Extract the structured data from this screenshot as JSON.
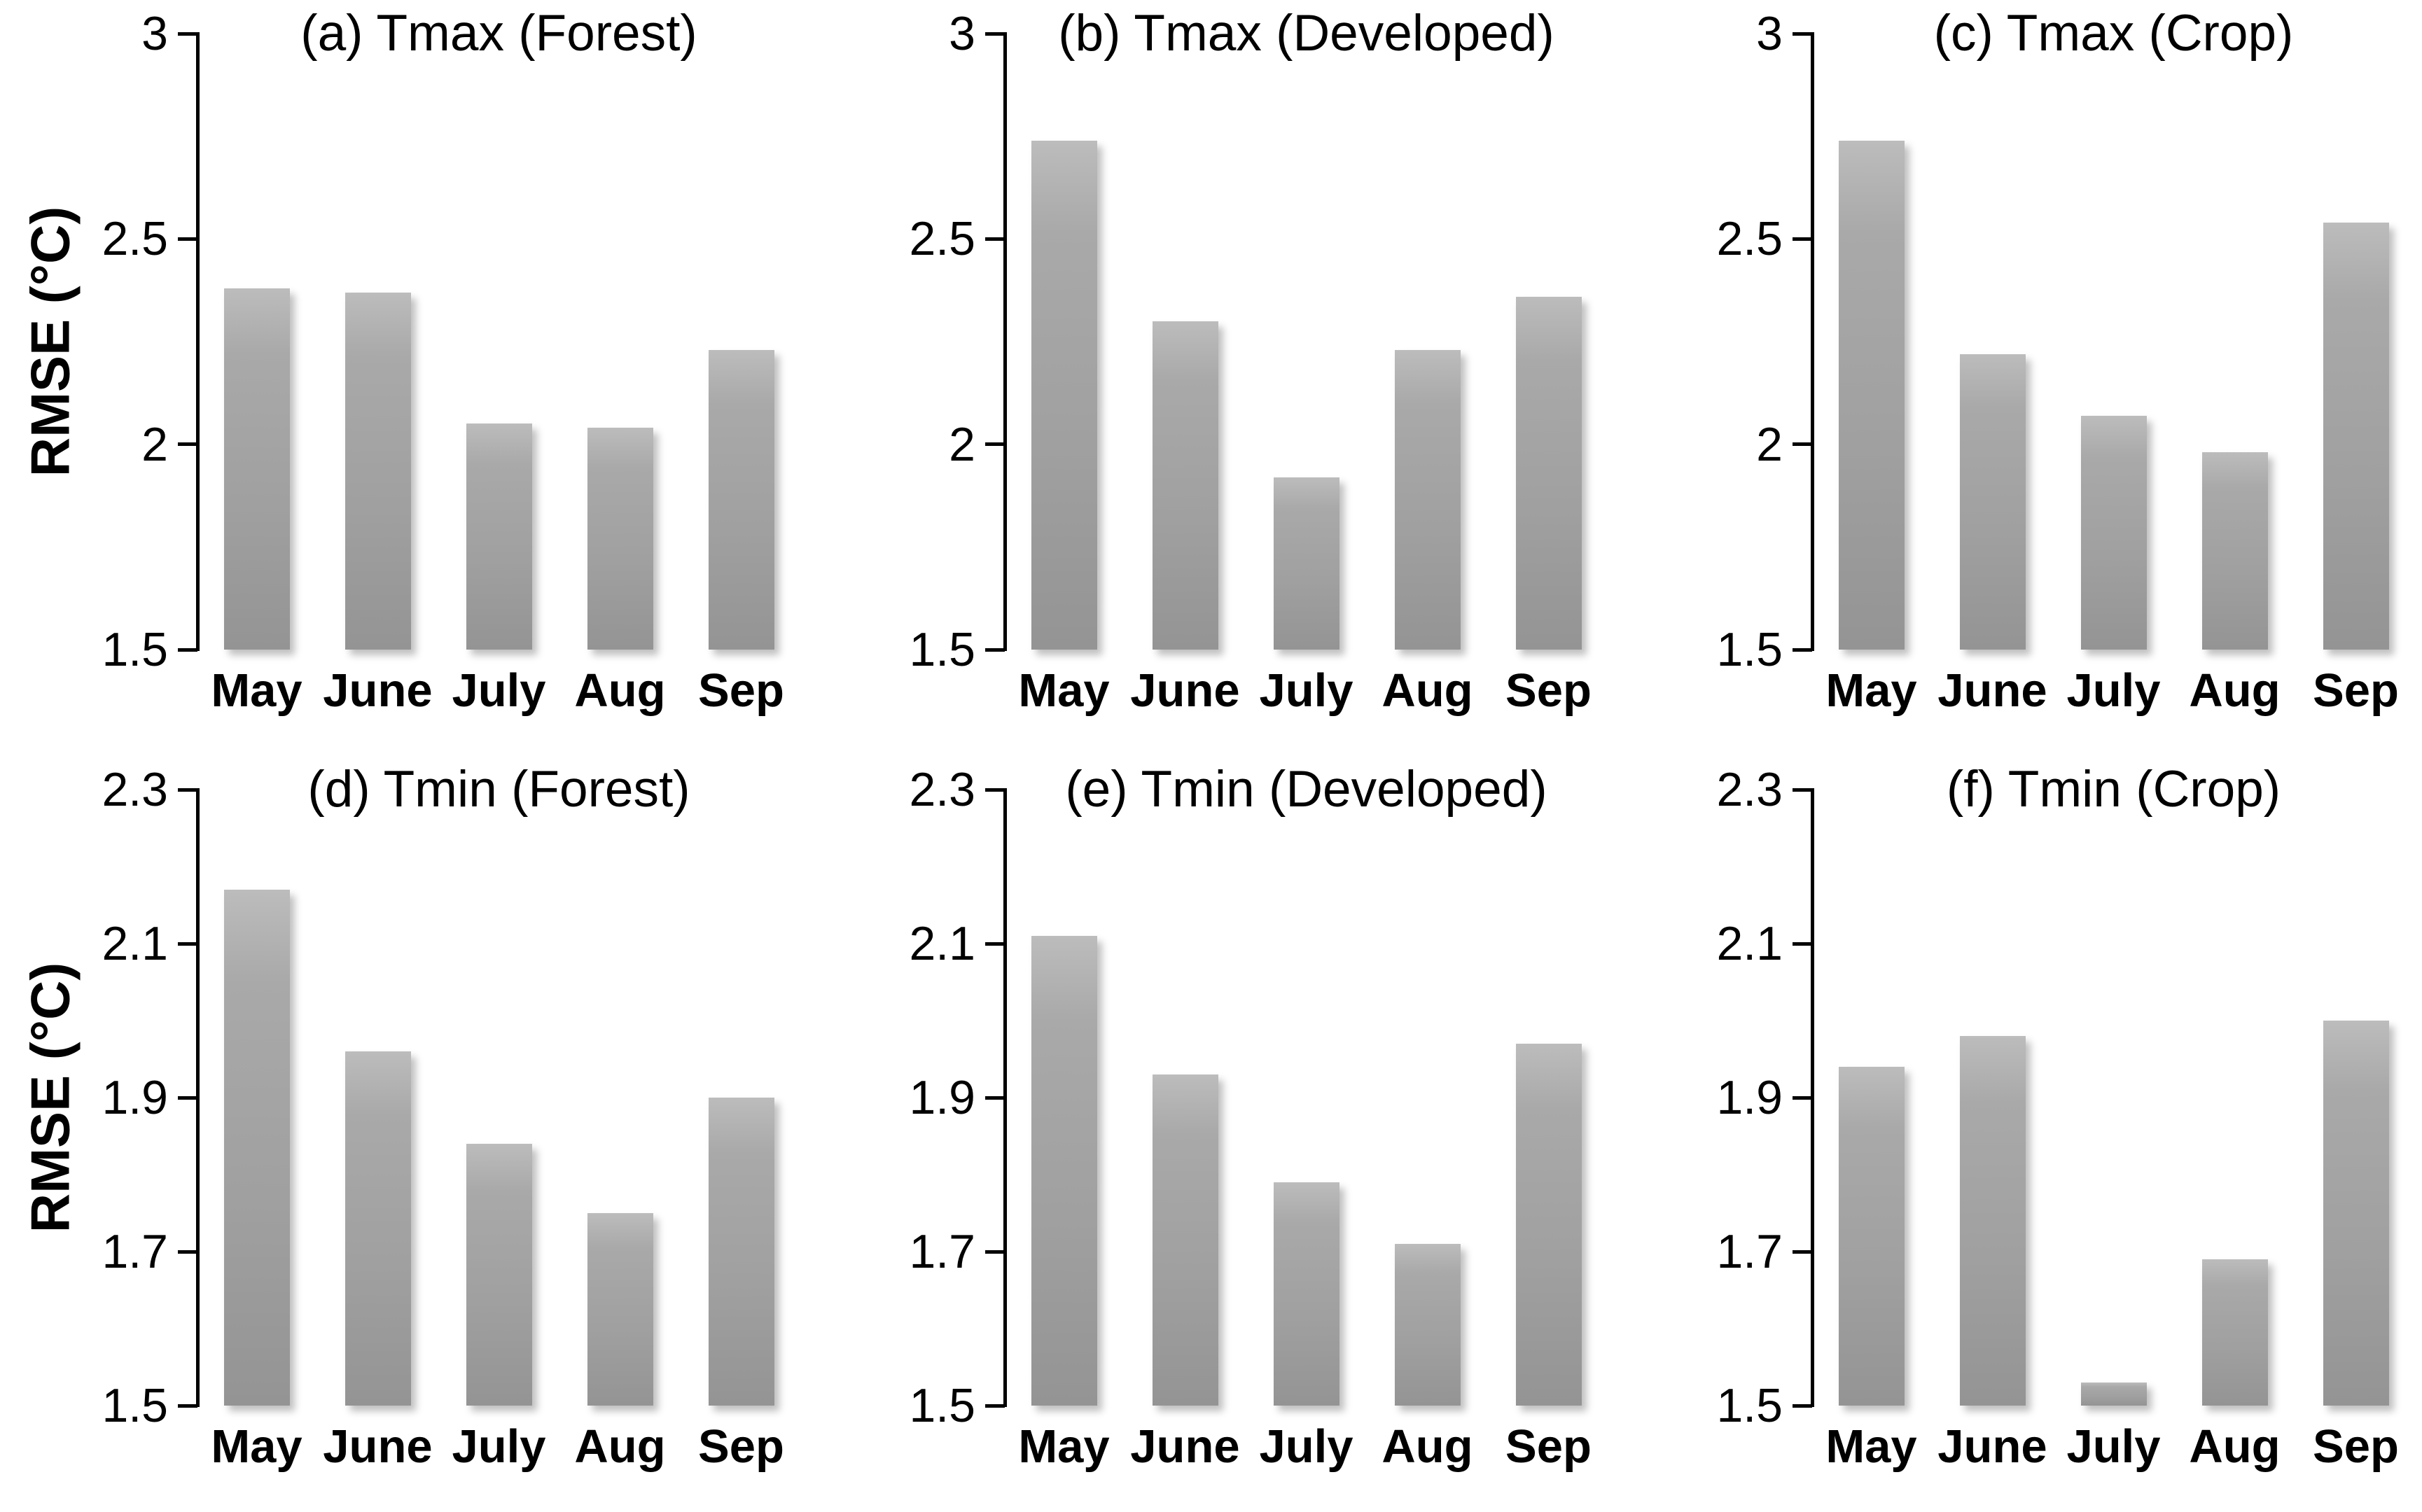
{
  "figure": {
    "background": "#ffffff",
    "text_color": "#000000",
    "axis_color": "#000000",
    "bar_color_top": "#bcbcbc",
    "bar_color_bottom": "#949494",
    "y_axis_label": "RMSE (°C)"
  },
  "chart_data": [
    {
      "type": "bar",
      "panel_id": "a",
      "title": "(a) Tmax (Forest)",
      "ylabel": "RMSE (°C)",
      "show_ylabel": true,
      "categories": [
        "May",
        "June",
        "July",
        "Aug",
        "Sep"
      ],
      "values": [
        2.38,
        2.37,
        2.05,
        2.04,
        2.23
      ],
      "ylim": [
        1.5,
        3.0
      ],
      "yticks": [
        3,
        2.5,
        2,
        1.5
      ],
      "ytick_labels": [
        "3",
        "2.5",
        "2",
        "1.5"
      ],
      "grid": false,
      "legend": false
    },
    {
      "type": "bar",
      "panel_id": "b",
      "title": "(b) Tmax (Developed)",
      "ylabel": "RMSE (°C)",
      "show_ylabel": false,
      "categories": [
        "May",
        "June",
        "July",
        "Aug",
        "Sep"
      ],
      "values": [
        2.74,
        2.3,
        1.92,
        2.23,
        2.36
      ],
      "ylim": [
        1.5,
        3.0
      ],
      "yticks": [
        3,
        2.5,
        2,
        1.5
      ],
      "ytick_labels": [
        "3",
        "2.5",
        "2",
        "1.5"
      ],
      "grid": false,
      "legend": false
    },
    {
      "type": "bar",
      "panel_id": "c",
      "title": "(c) Tmax (Crop)",
      "ylabel": "RMSE (°C)",
      "show_ylabel": false,
      "categories": [
        "May",
        "June",
        "July",
        "Aug",
        "Sep"
      ],
      "values": [
        2.74,
        2.22,
        2.07,
        1.98,
        2.54
      ],
      "ylim": [
        1.5,
        3.0
      ],
      "yticks": [
        3,
        2.5,
        2,
        1.5
      ],
      "ytick_labels": [
        "3",
        "2.5",
        "2",
        "1.5"
      ],
      "grid": false,
      "legend": false
    },
    {
      "type": "bar",
      "panel_id": "d",
      "title": "(d) Tmin (Forest)",
      "ylabel": "RMSE (°C)",
      "show_ylabel": true,
      "categories": [
        "May",
        "June",
        "July",
        "Aug",
        "Sep"
      ],
      "values": [
        2.17,
        1.96,
        1.84,
        1.75,
        1.9
      ],
      "ylim": [
        1.5,
        2.3
      ],
      "yticks": [
        2.3,
        2.1,
        1.9,
        1.7,
        1.5
      ],
      "ytick_labels": [
        "2.3",
        "2.1",
        "1.9",
        "1.7",
        "1.5"
      ],
      "grid": false,
      "legend": false
    },
    {
      "type": "bar",
      "panel_id": "e",
      "title": "(e) Tmin (Developed)",
      "ylabel": "RMSE (°C)",
      "show_ylabel": false,
      "categories": [
        "May",
        "June",
        "July",
        "Aug",
        "Sep"
      ],
      "values": [
        2.11,
        1.93,
        1.79,
        1.71,
        1.97
      ],
      "ylim": [
        1.5,
        2.3
      ],
      "yticks": [
        2.3,
        2.1,
        1.9,
        1.7,
        1.5
      ],
      "ytick_labels": [
        "2.3",
        "2.1",
        "1.9",
        "1.7",
        "1.5"
      ],
      "grid": false,
      "legend": false
    },
    {
      "type": "bar",
      "panel_id": "f",
      "title": "(f) Tmin (Crop)",
      "ylabel": "RMSE (°C)",
      "show_ylabel": false,
      "categories": [
        "May",
        "June",
        "July",
        "Aug",
        "Sep"
      ],
      "values": [
        1.94,
        1.98,
        1.53,
        1.69,
        2.0
      ],
      "ylim": [
        1.5,
        2.3
      ],
      "yticks": [
        2.3,
        2.1,
        1.9,
        1.7,
        1.5
      ],
      "ytick_labels": [
        "2.3",
        "2.1",
        "1.9",
        "1.7",
        "1.5"
      ],
      "grid": false,
      "legend": false
    }
  ]
}
